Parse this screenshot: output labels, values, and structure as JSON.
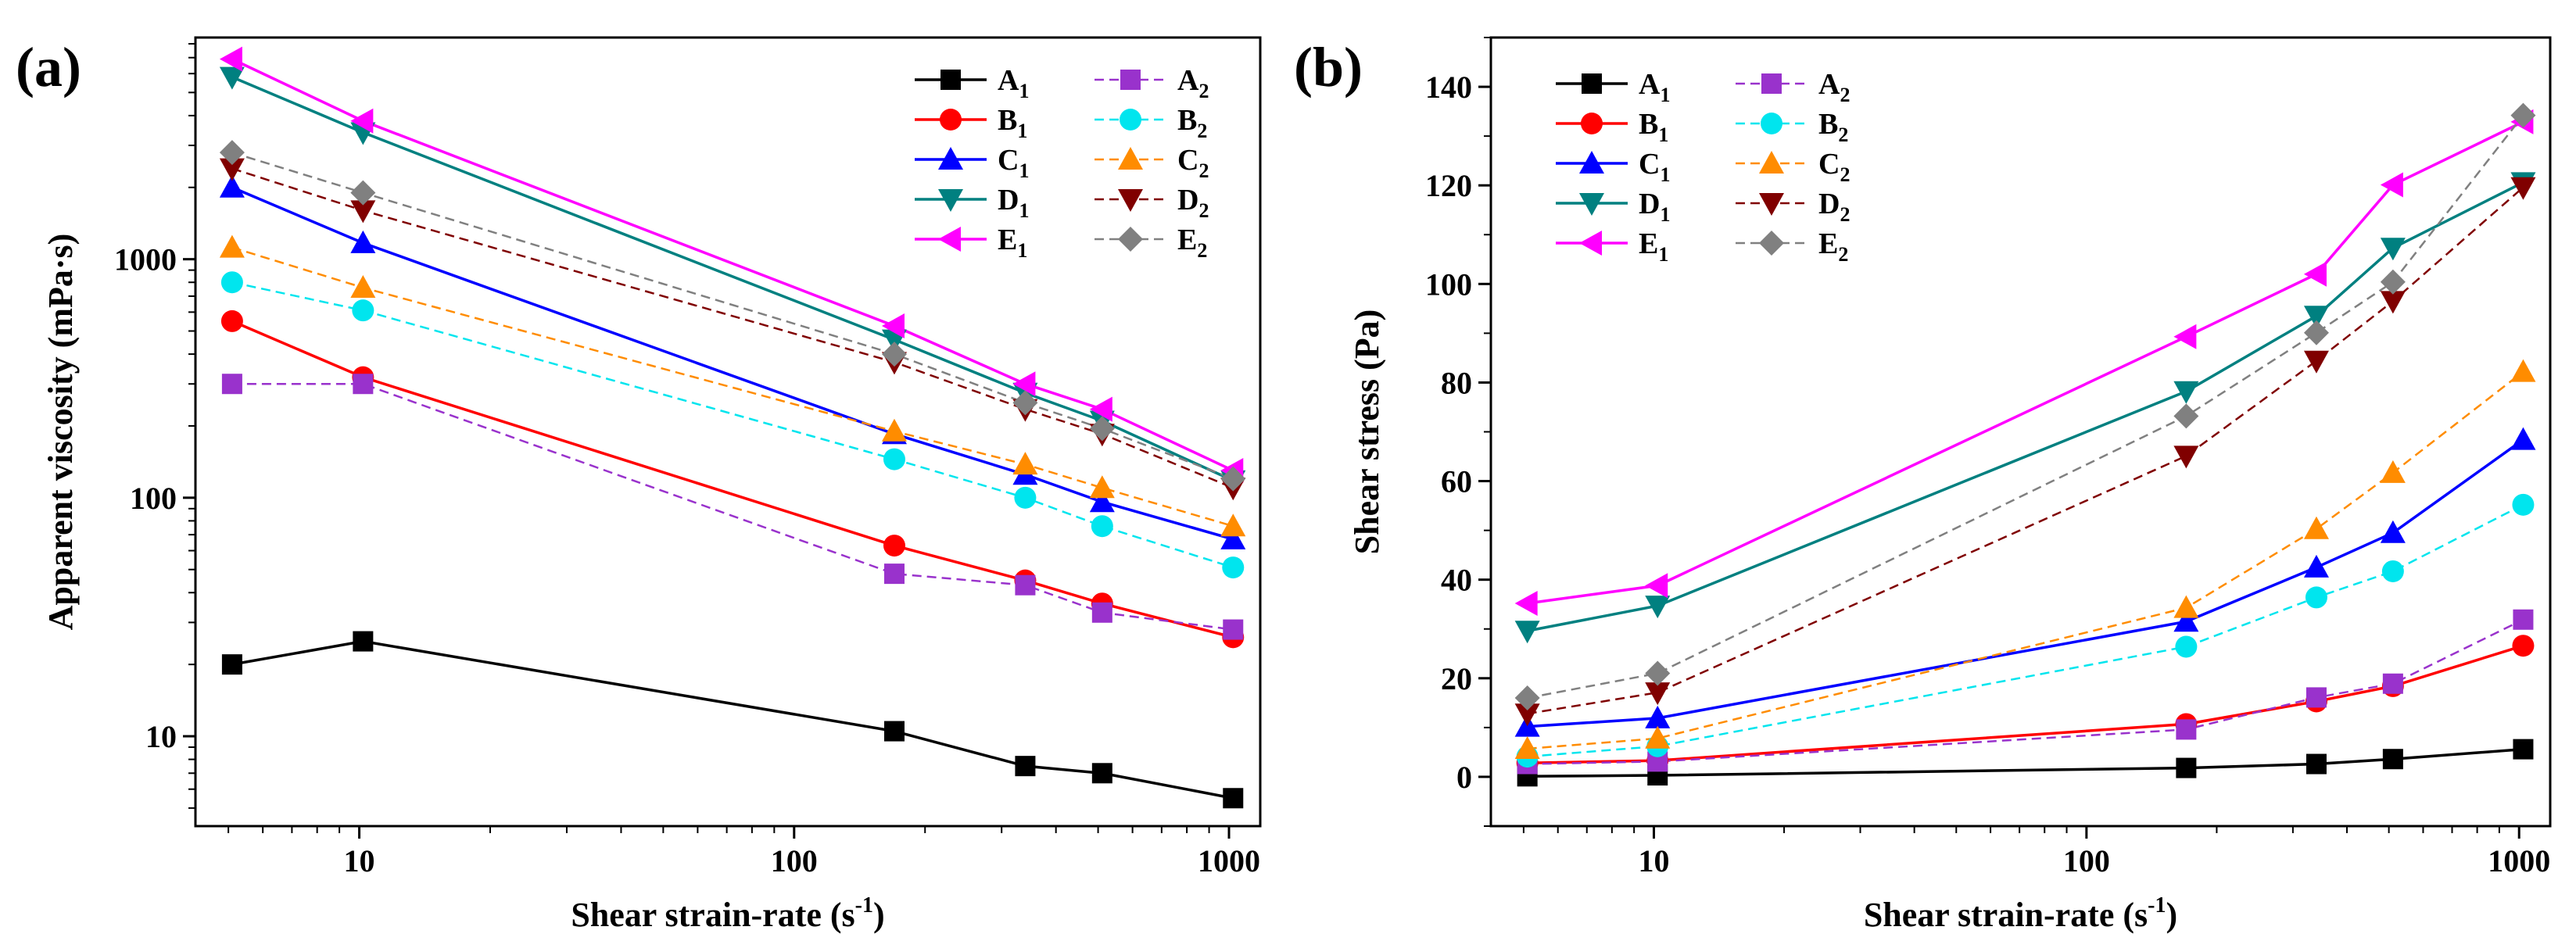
{
  "chart_data": [
    {
      "panel": "(a)",
      "type": "line",
      "xscale": "log",
      "yscale": "log",
      "xlim": [
        4.2,
        1180
      ],
      "ylim": [
        4.2,
        8500
      ],
      "xticks": [
        10,
        100,
        1000
      ],
      "xtick_labels": [
        "10",
        "100",
        "1000"
      ],
      "yticks": [
        10,
        100,
        1000
      ],
      "ytick_labels": [
        "10",
        "100",
        "1000"
      ],
      "xlabel": "Shear strain-rate (s",
      "xlabel_sup": "-1",
      "xlabel_end": ")",
      "ylabel": "Apparent viscosity (mPa·s)",
      "legend_position": "top-right",
      "x": [
        5.1,
        10.2,
        170,
        340,
        511,
        1022
      ],
      "series": [
        {
          "name": "A",
          "sub": "1",
          "color": "#000000",
          "marker": "square",
          "dashed": false,
          "values": [
            20,
            25,
            10.5,
            7.5,
            7,
            5.5
          ]
        },
        {
          "name": "B",
          "sub": "1",
          "color": "#ff0000",
          "marker": "circle",
          "dashed": false,
          "values": [
            550,
            320,
            63,
            45,
            36,
            26
          ]
        },
        {
          "name": "C",
          "sub": "1",
          "color": "#0000ff",
          "marker": "triangle-up",
          "dashed": false,
          "values": [
            2000,
            1170,
            185,
            125,
            96,
            67
          ]
        },
        {
          "name": "D",
          "sub": "1",
          "color": "#008080",
          "marker": "triangle-down",
          "dashed": false,
          "values": [
            5800,
            3400,
            460,
            275,
            210,
            118
          ]
        },
        {
          "name": "E",
          "sub": "1",
          "color": "#ff00ff",
          "marker": "triangle-left",
          "dashed": false,
          "values": [
            6900,
            3800,
            525,
            300,
            235,
            130
          ]
        },
        {
          "name": "A",
          "sub": "2",
          "color": "#9932cc",
          "marker": "square",
          "dashed": true,
          "values": [
            300,
            300,
            48,
            43,
            33,
            28
          ]
        },
        {
          "name": "B",
          "sub": "2",
          "color": "#00e5ee",
          "marker": "circle",
          "dashed": true,
          "values": [
            800,
            610,
            145,
            100,
            76,
            51
          ]
        },
        {
          "name": "C",
          "sub": "2",
          "color": "#ff8c00",
          "marker": "triangle-up",
          "dashed": true,
          "values": [
            1120,
            760,
            190,
            138,
            110,
            76
          ]
        },
        {
          "name": "D",
          "sub": "2",
          "color": "#800000",
          "marker": "triangle-down",
          "dashed": true,
          "values": [
            2400,
            1600,
            370,
            235,
            185,
            110
          ]
        },
        {
          "name": "E",
          "sub": "2",
          "color": "#808080",
          "marker": "diamond",
          "dashed": true,
          "values": [
            2800,
            1900,
            400,
            250,
            195,
            120
          ]
        }
      ]
    },
    {
      "panel": "(b)",
      "type": "line",
      "xscale": "log",
      "yscale": "linear",
      "xlim": [
        4.2,
        1180
      ],
      "ylim": [
        -10,
        150
      ],
      "xticks": [
        10,
        100,
        1000
      ],
      "xtick_labels": [
        "10",
        "100",
        "1000"
      ],
      "yticks": [
        0,
        20,
        40,
        60,
        80,
        100,
        120,
        140
      ],
      "ytick_labels": [
        "0",
        "20",
        "40",
        "60",
        "80",
        "100",
        "120",
        "140"
      ],
      "xlabel": "Shear strain-rate (s",
      "xlabel_sup": "-1",
      "xlabel_end": ")",
      "ylabel": "Shear stress (Pa)",
      "legend_position": "top-left",
      "x": [
        5.1,
        10.2,
        170,
        340,
        511,
        1022
      ],
      "series": [
        {
          "name": "A",
          "sub": "1",
          "color": "#000000",
          "marker": "square",
          "dashed": false,
          "values": [
            0.1,
            0.3,
            1.8,
            2.6,
            3.6,
            5.6
          ]
        },
        {
          "name": "B",
          "sub": "1",
          "color": "#ff0000",
          "marker": "circle",
          "dashed": false,
          "values": [
            2.8,
            3.3,
            10.7,
            15.3,
            18.4,
            26.6
          ]
        },
        {
          "name": "C",
          "sub": "1",
          "color": "#0000ff",
          "marker": "triangle-up",
          "dashed": false,
          "values": [
            10.2,
            11.9,
            31.5,
            42.5,
            49.5,
            68.4
          ]
        },
        {
          "name": "D",
          "sub": "1",
          "color": "#008080",
          "marker": "triangle-down",
          "dashed": false,
          "values": [
            29.6,
            34.7,
            78.2,
            93.5,
            107.3,
            120.6
          ]
        },
        {
          "name": "E",
          "sub": "1",
          "color": "#ff00ff",
          "marker": "triangle-left",
          "dashed": false,
          "values": [
            35.2,
            38.8,
            89.3,
            102,
            120.1,
            132.9
          ]
        },
        {
          "name": "A",
          "sub": "2",
          "color": "#9932cc",
          "marker": "square",
          "dashed": true,
          "values": [
            2.6,
            3.1,
            9.6,
            16.1,
            18.9,
            31.9
          ]
        },
        {
          "name": "B",
          "sub": "2",
          "color": "#00e5ee",
          "marker": "circle",
          "dashed": true,
          "values": [
            4.1,
            6.2,
            26.4,
            36.4,
            41.7,
            55.2
          ]
        },
        {
          "name": "C",
          "sub": "2",
          "color": "#ff8c00",
          "marker": "triangle-up",
          "dashed": true,
          "values": [
            5.7,
            7.8,
            34.3,
            50.3,
            61.7,
            82.2
          ]
        },
        {
          "name": "D",
          "sub": "2",
          "color": "#800000",
          "marker": "triangle-down",
          "dashed": true,
          "values": [
            12.8,
            17.1,
            65.1,
            84.4,
            96.5,
            119.6
          ]
        },
        {
          "name": "E",
          "sub": "2",
          "color": "#808080",
          "marker": "diamond",
          "dashed": true,
          "values": [
            16,
            21,
            73.2,
            90.1,
            100.4,
            134.2
          ]
        }
      ]
    }
  ]
}
